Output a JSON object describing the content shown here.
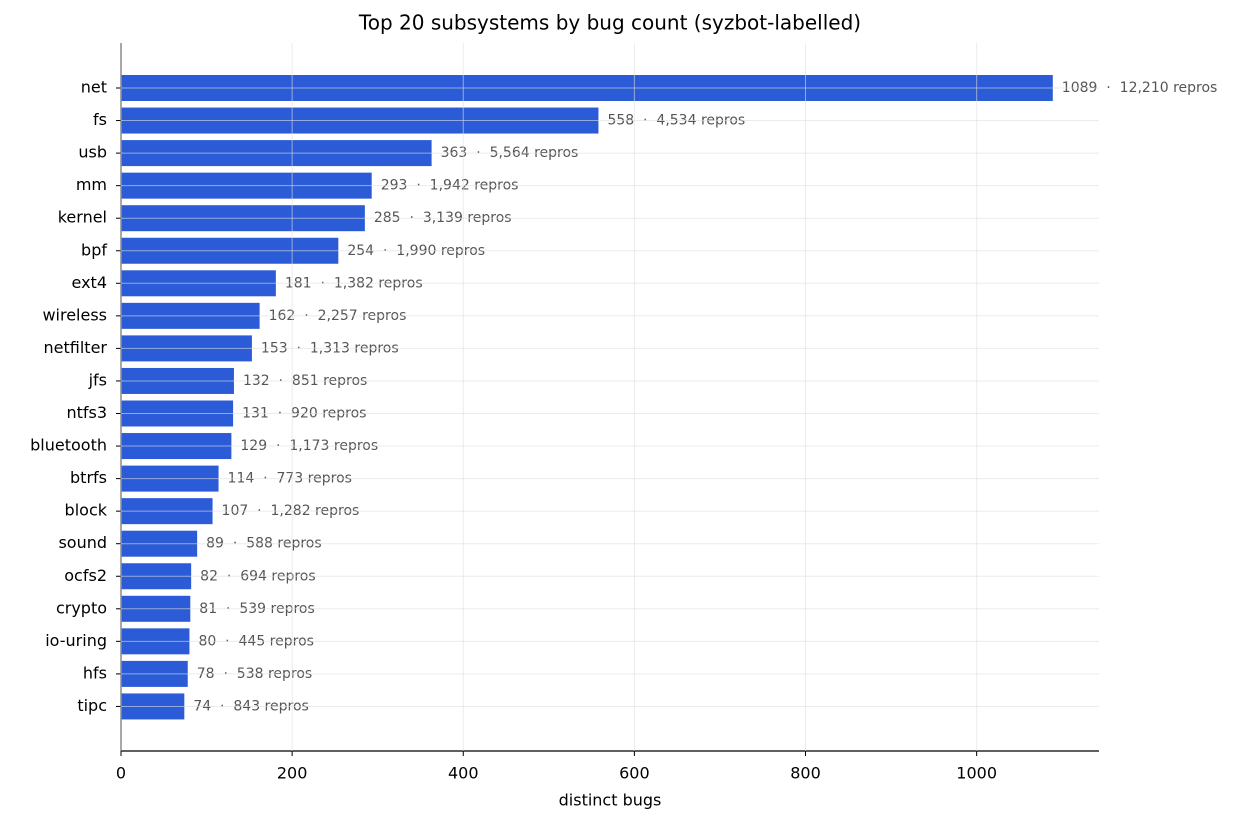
{
  "chart_data": {
    "type": "barh",
    "title": "Top 20 subsystems by bug count (syzbot-labelled)",
    "x_label": "distinct bugs",
    "categories": [
      "net",
      "fs",
      "usb",
      "mm",
      "kernel",
      "bpf",
      "ext4",
      "wireless",
      "netfilter",
      "jfs",
      "ntfs3",
      "bluetooth",
      "btrfs",
      "block",
      "sound",
      "ocfs2",
      "crypto",
      "io-uring",
      "hfs",
      "tipc"
    ],
    "values": [
      1089,
      558,
      363,
      293,
      285,
      254,
      181,
      162,
      153,
      132,
      131,
      129,
      114,
      107,
      89,
      82,
      81,
      80,
      78,
      74
    ],
    "value_labels": [
      "1089  ·  12,210 repros",
      "558  ·  4,534 repros",
      "363  ·  5,564 repros",
      "293  ·  1,942 repros",
      "285  ·  3,139 repros",
      "254  ·  1,990 repros",
      "181  ·  1,382 repros",
      "162  ·  2,257 repros",
      "153  ·  1,313 repros",
      "132  ·  851 repros",
      "131  ·  920 repros",
      "129  ·  1,173 repros",
      "114  ·  773 repros",
      "107  ·  1,282 repros",
      "89  ·  588 repros",
      "82  ·  694 repros",
      "81  ·  539 repros",
      "80  ·  445 repros",
      "78  ·  538 repros",
      "74  ·  843 repros"
    ],
    "color": "#2b5bd6",
    "xlim": [
      0,
      1143
    ],
    "xticks": [
      0,
      200,
      400,
      600,
      800,
      1000
    ],
    "grid": true
  }
}
